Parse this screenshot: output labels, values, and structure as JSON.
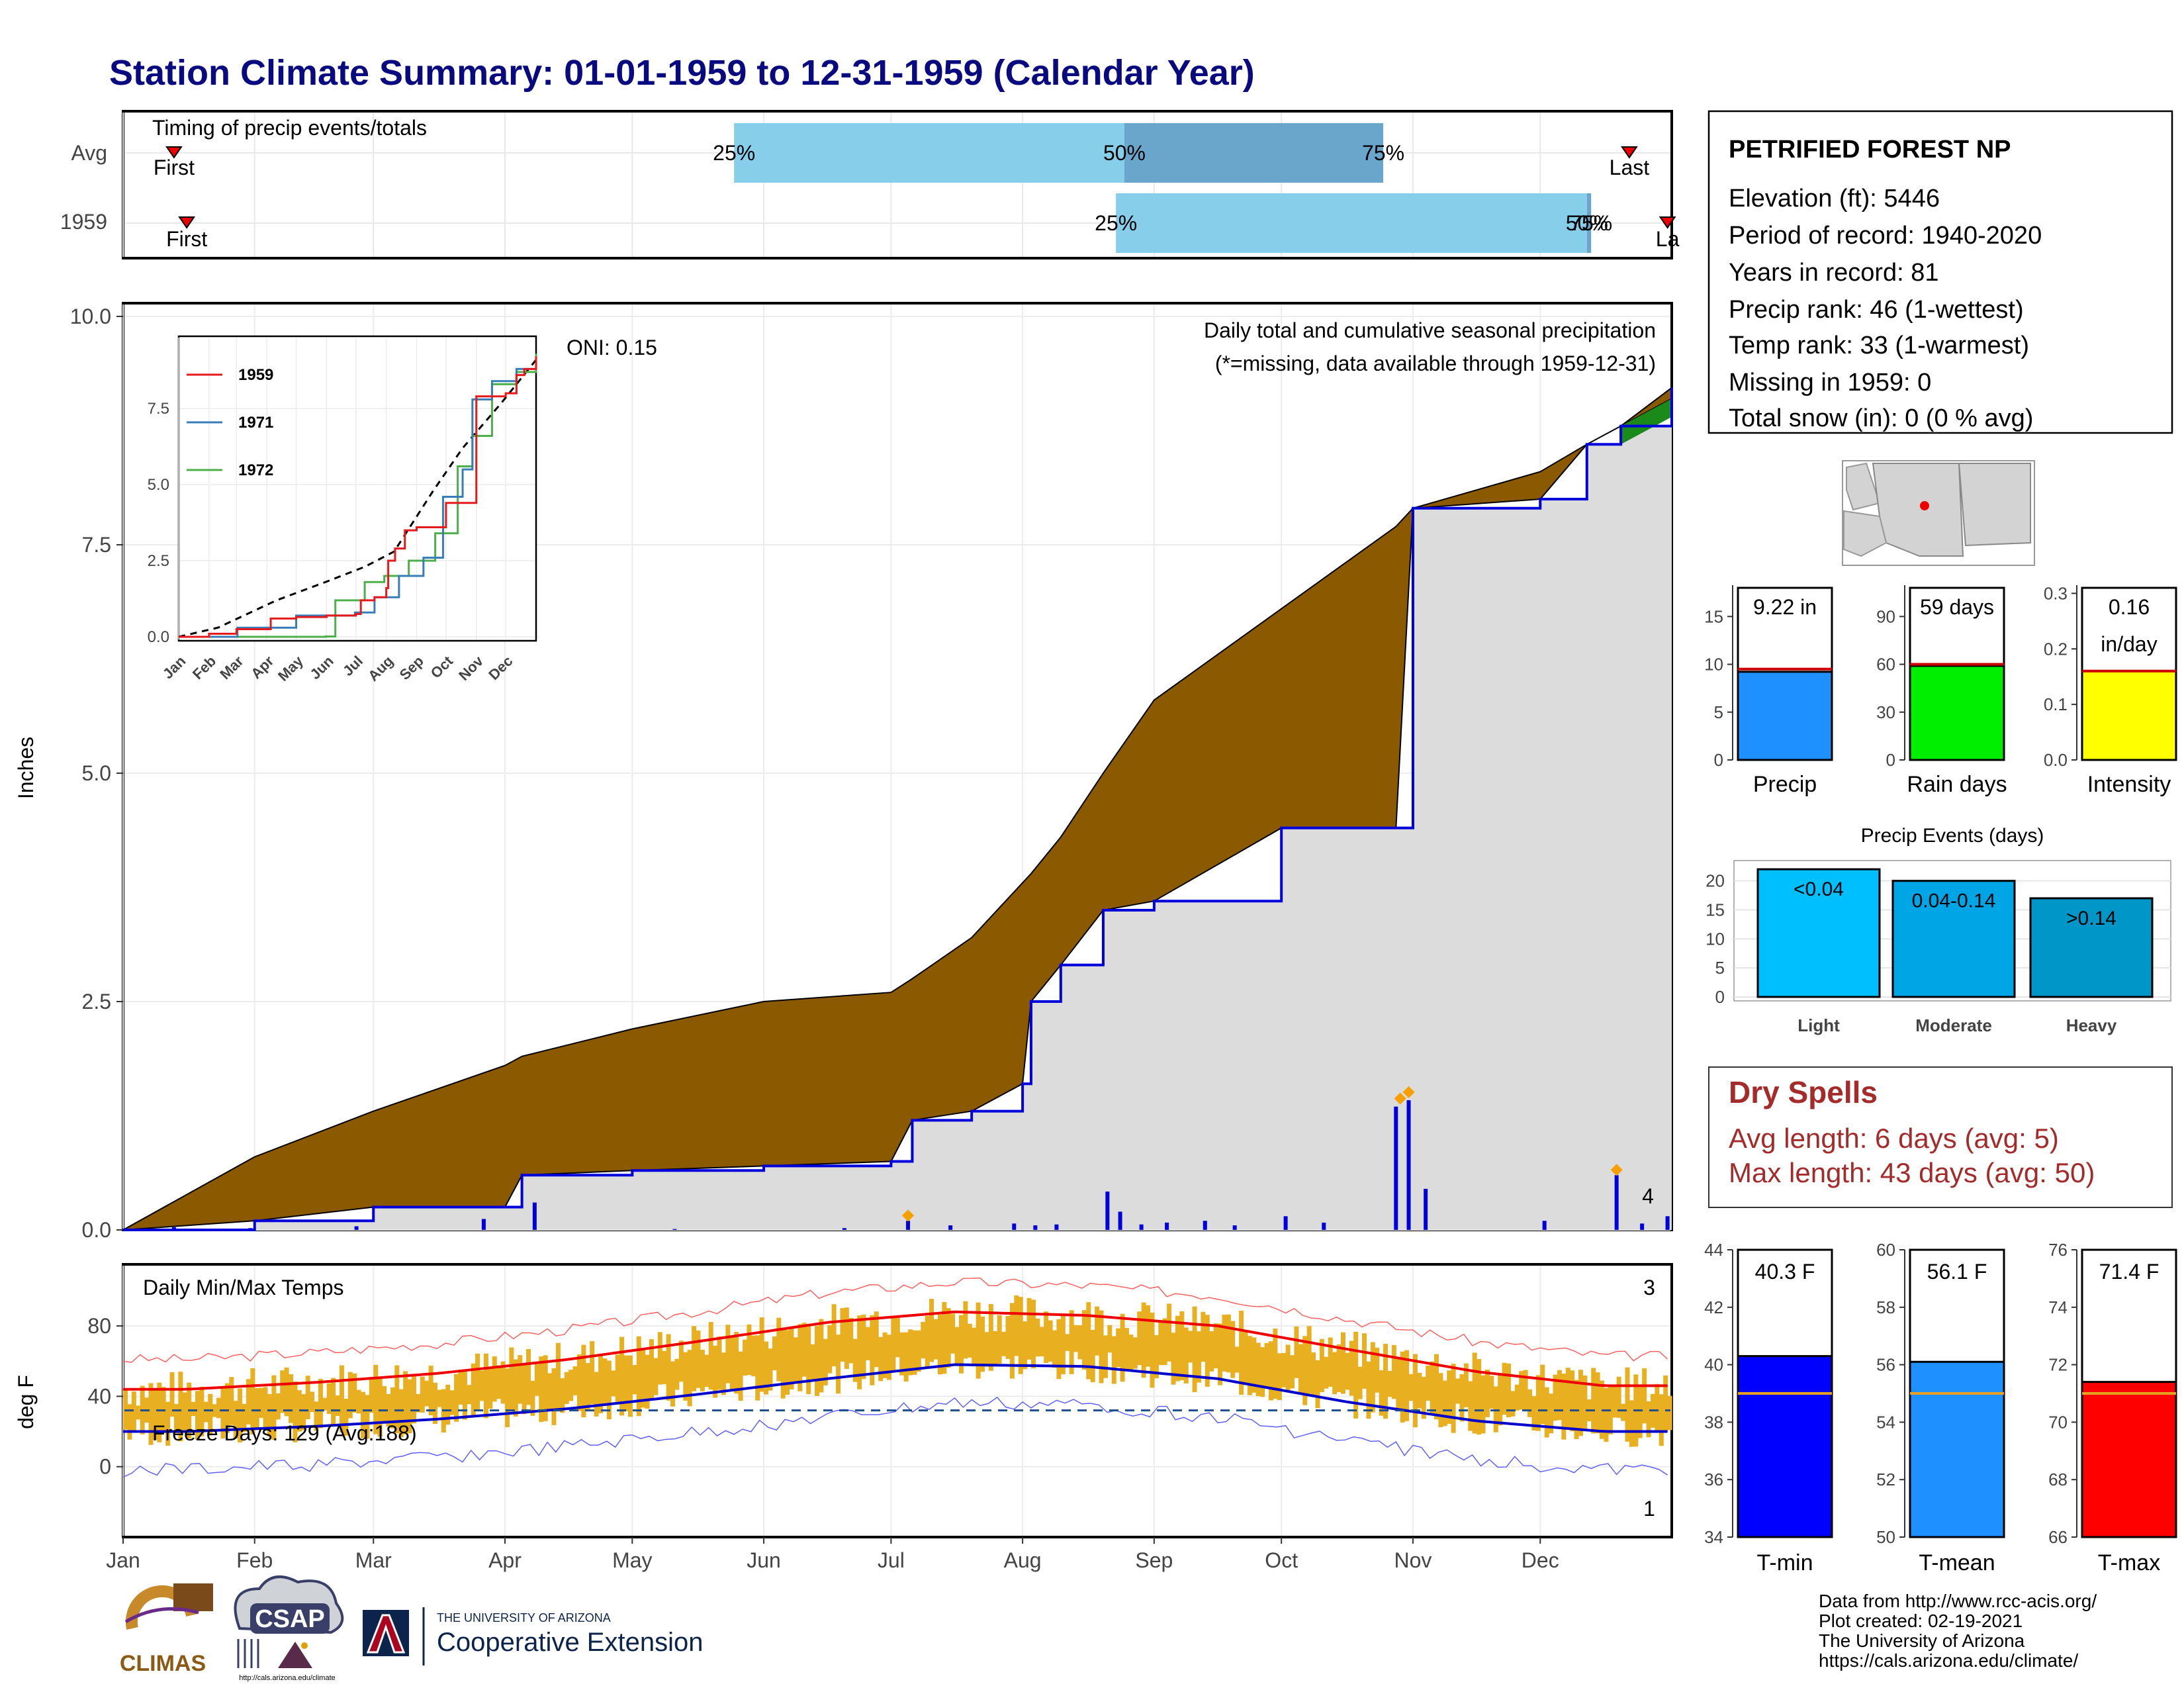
{
  "title": "Station Climate Summary: 01-01-1959 to 12-31-1959 (Calendar Year)",
  "months": [
    "Jan",
    "Feb",
    "Mar",
    "Apr",
    "May",
    "Jun",
    "Jul",
    "Aug",
    "Sep",
    "Oct",
    "Nov",
    "Dec"
  ],
  "timing": {
    "label": "Timing of precip events/totals",
    "rows": [
      "Avg",
      "1959"
    ],
    "first_label": "First",
    "last_label": "Last",
    "last_label_cut": "La",
    "avg_pcts": [
      "25%",
      "50%",
      "75%"
    ],
    "yr_pcts": [
      "25%",
      "50%",
      "75%"
    ],
    "avg_pct_days": [
      144,
      236,
      297
    ],
    "yr_pct_days": [
      234,
      345,
      346
    ],
    "avg_first_day": 12,
    "avg_last_day": 355,
    "yr_first_day": 15,
    "yr_last_day": 364
  },
  "precip_panel": {
    "ylabel": "Inches",
    "yticks": [
      "0.0",
      "2.5",
      "5.0",
      "7.5",
      "10.0"
    ],
    "ymax": 10,
    "oni": "ONI: 0.15",
    "subtitle": "Daily total and cumulative seasonal precipitation",
    "missing_note": "(*=missing, data available through 1959-12-31)",
    "count_label": "4"
  },
  "inset": {
    "yticks": [
      "0.0",
      "2.5",
      "5.0",
      "7.5"
    ],
    "legend": [
      "1959",
      "1971",
      "1972"
    ],
    "colors": [
      "#e41a1c",
      "#377eb8",
      "#4daf4a"
    ]
  },
  "temp_panel": {
    "ylabel": "deg F",
    "title": "Daily Min/Max Temps",
    "yticks": [
      "0",
      "40",
      "80"
    ],
    "freeze_text": "Freeze Days: 129 (Avg:188)",
    "top_count": "3",
    "bottom_count": "1"
  },
  "station": {
    "name": "PETRIFIED FOREST NP",
    "lines": [
      "Elevation (ft): 5446",
      "Period of record: 1940-2020",
      "Years in record: 81",
      "Precip rank: 46 (1-wettest)",
      "Temp rank: 33 (1-warmest)",
      "Missing in 1959: 0",
      "Total snow (in): 0 (0 % avg)"
    ]
  },
  "mini_bars": [
    {
      "label": "Precip",
      "value_text": "9.22 in",
      "value": 9.22,
      "avg": 9.5,
      "max": 18,
      "ticks": [
        "0",
        "5",
        "10",
        "15"
      ],
      "color": "#1e90ff"
    },
    {
      "label": "Rain days",
      "value_text": "59 days",
      "value": 59,
      "avg": 60,
      "max": 108,
      "ticks": [
        "0",
        "30",
        "60",
        "90"
      ],
      "color": "#00ee00"
    },
    {
      "label": "Intensity",
      "value_text": "0.16",
      "value_text2": "in/day",
      "value": 0.16,
      "avg": 0.16,
      "max": 0.31,
      "ticks": [
        "0.0",
        "0.1",
        "0.2",
        "0.3"
      ],
      "color": "#ffff00"
    }
  ],
  "events": {
    "title": "Precip Events (days)",
    "yticks": [
      "0",
      "5",
      "10",
      "15",
      "20"
    ],
    "categories": [
      "Light",
      "Moderate",
      "Heavy"
    ],
    "values": [
      22,
      20,
      17
    ],
    "bar_labels": [
      "<0.04",
      "0.04-0.14",
      ">0.14"
    ],
    "colors": [
      "#00bfff",
      "#00a5e6",
      "#0096c8"
    ]
  },
  "dry_spells": {
    "title": "Dry Spells",
    "avg": "Avg length: 6 days (avg: 5)",
    "max": "Max length: 43 days (avg: 50)"
  },
  "temp_bars": [
    {
      "label": "T-min",
      "value_text": "40.3 F",
      "value": 40.3,
      "avg": 39.0,
      "min": 34,
      "max": 44,
      "ticks": [
        "34",
        "36",
        "38",
        "40",
        "42",
        "44"
      ],
      "color": "#0000ff"
    },
    {
      "label": "T-mean",
      "value_text": "56.1 F",
      "value": 56.1,
      "avg": 55.0,
      "min": 50,
      "max": 60,
      "ticks": [
        "50",
        "52",
        "54",
        "56",
        "58",
        "60"
      ],
      "color": "#1e90ff"
    },
    {
      "label": "T-max",
      "value_text": "71.4 F",
      "value": 71.4,
      "avg": 71.0,
      "min": 66,
      "max": 76,
      "ticks": [
        "66",
        "68",
        "70",
        "72",
        "74",
        "76"
      ],
      "color": "#ff0000"
    }
  ],
  "credits": [
    "Data from http://www.rcc-acis.org/",
    "Plot created: 02-19-2021",
    "The University of Arizona",
    "https://cals.arizona.edu/climate/"
  ],
  "logos": {
    "climas": "CLIMAS",
    "csap": "CSAP",
    "csap_url": "http://cals.arizona.edu/climate",
    "ua_small": "THE UNIVERSITY OF ARIZONA",
    "ua_big": "Cooperative Extension"
  },
  "chart_data": [
    {
      "type": "area",
      "title": "Daily total and cumulative seasonal precipitation",
      "ylabel": "Inches",
      "ylim": [
        0,
        10
      ],
      "x": [
        "01-01",
        "02-01",
        "03-01",
        "04-01",
        "04-05",
        "05-01",
        "06-01",
        "07-01",
        "07-06",
        "07-20",
        "08-01",
        "08-03",
        "08-10",
        "08-20",
        "09-01",
        "10-01",
        "10-28",
        "11-01",
        "12-01",
        "12-12",
        "12-20",
        "12-31"
      ],
      "series": [
        {
          "name": "1959",
          "values": [
            0.0,
            0.1,
            0.25,
            0.25,
            0.6,
            0.65,
            0.7,
            0.75,
            1.2,
            1.3,
            1.6,
            2.5,
            2.9,
            3.5,
            3.6,
            4.4,
            4.4,
            7.9,
            8.0,
            8.6,
            8.8,
            9.22
          ]
        },
        {
          "values": [
            0.0,
            0.8,
            1.3,
            1.8,
            1.9,
            2.2,
            2.5,
            2.6,
            2.75,
            3.2,
            3.8,
            3.9,
            4.3,
            5.0,
            5.8,
            6.8,
            7.7,
            7.9,
            8.3,
            8.6,
            8.8,
            9.1
          ]
        }
      ]
    },
    {
      "type": "bar",
      "title": "Precip Events (days)",
      "categories": [
        "Light",
        "Moderate",
        "Heavy"
      ],
      "values": [
        22,
        20,
        17
      ]
    },
    {
      "type": "line",
      "title": "Daily Min/Max Temps",
      "ylabel": "deg F",
      "x": [
        "Jan",
        "Feb",
        "Mar",
        "Apr",
        "May",
        "Jun",
        "Jul",
        "Aug",
        "Sep",
        "Oct",
        "Nov",
        "Dec"
      ],
      "series": [
        {
          "values": [
            44,
            48,
            53,
            61,
            71,
            82,
            88,
            86,
            80,
            67,
            54,
            46
          ]
        },
        {
          "values": [
            20,
            23,
            27,
            33,
            41,
            50,
            58,
            57,
            50,
            37,
            26,
            20
          ]
        }
      ]
    }
  ]
}
